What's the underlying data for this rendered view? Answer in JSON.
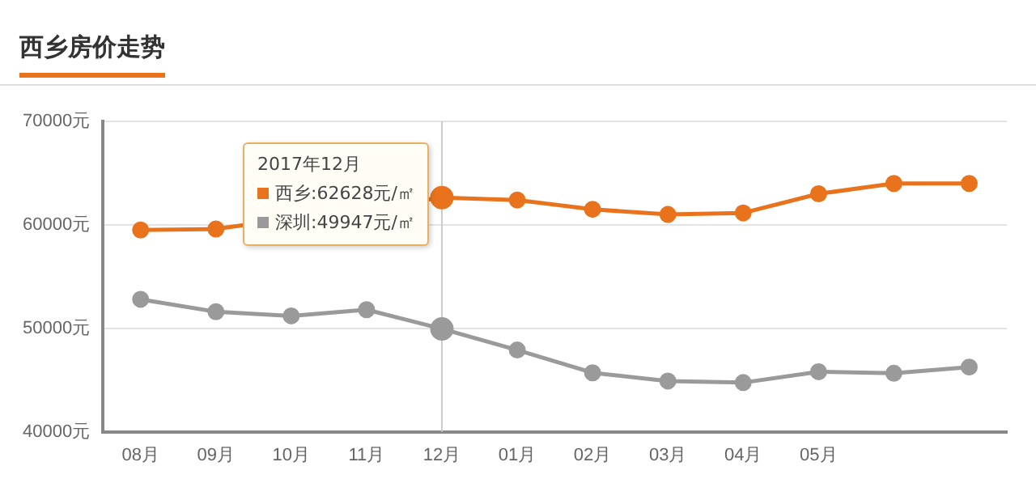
{
  "chart_data": {
    "type": "line",
    "title": "西乡房价走势",
    "categories": [
      "08月",
      "09月",
      "10月",
      "11月",
      "12月",
      "01月",
      "02月",
      "03月",
      "04月",
      "05月",
      null,
      null
    ],
    "series": [
      {
        "name": "西乡",
        "color": "#e8731c",
        "values": [
          59500,
          59600,
          null,
          null,
          62628,
          62400,
          61500,
          61000,
          61150,
          63000,
          64000,
          64000
        ]
      },
      {
        "name": "深圳",
        "color": "#9a9a9a",
        "values": [
          52800,
          51600,
          51200,
          51800,
          49947,
          47900,
          45700,
          44900,
          44750,
          45800,
          45650,
          46250
        ]
      }
    ],
    "ylim": [
      40000,
      70000
    ],
    "yticks": [
      {
        "value": 40000,
        "label": "40000元"
      },
      {
        "value": 50000,
        "label": "50000元"
      },
      {
        "value": 60000,
        "label": "60000元"
      },
      {
        "value": 70000,
        "label": "70000元"
      }
    ],
    "grid": "y",
    "legend": "top left",
    "marker": "circle",
    "line_style": "solid",
    "ref_lines": [
      {
        "axis": "x",
        "value": "12月",
        "color": "#cccccc"
      }
    ],
    "annotations": [
      "2017年12月",
      ":62628元/㎡",
      ":49947元/㎡"
    ]
  }
}
